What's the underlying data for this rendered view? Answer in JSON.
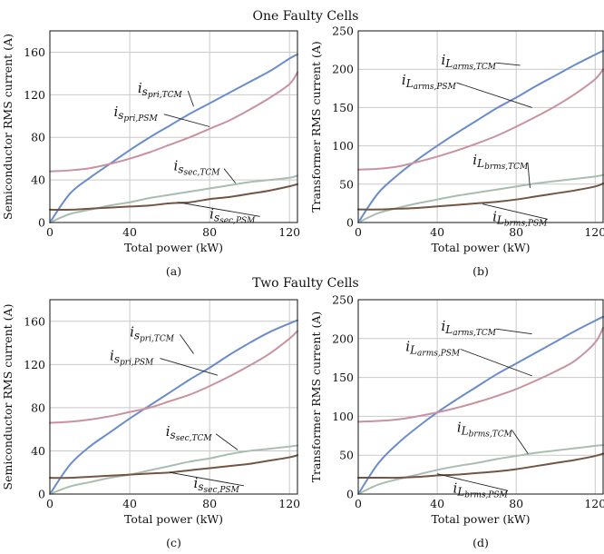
{
  "figure": {
    "title_top": "One Faulty Cells",
    "title_bottom": "Two Faulty Cells"
  },
  "colors": {
    "tcm_primary": "#6b8ccb",
    "psm_primary": "#c9929f",
    "tcm_secondary": "#a9bdb0",
    "psm_secondary": "#735544"
  },
  "chart_data": [
    {
      "id": "a",
      "type": "line",
      "panel_label": "(a)",
      "xlabel": "Total power (kW)",
      "ylabel": "Semiconductor RMS current (A)",
      "xlim": [
        0,
        124
      ],
      "ylim": [
        0,
        180
      ],
      "xticks": [
        0,
        40,
        80,
        120
      ],
      "yticks": [
        0,
        40,
        80,
        120,
        160
      ],
      "grid": true,
      "series": [
        {
          "name": "i_{s_{pri,TCM}}",
          "color": "#6b8ccb",
          "x": [
            0,
            10,
            20,
            30,
            40,
            50,
            60,
            70,
            80,
            90,
            100,
            110,
            120,
            124
          ],
          "y": [
            0,
            27,
            42,
            55,
            68,
            80,
            91,
            102,
            112,
            122,
            132,
            142,
            154,
            158
          ],
          "label": {
            "main": "i",
            "sub": "s",
            "subsub": "pri,TCM",
            "at": [
              44,
              122
            ],
            "anchor": [
              72,
              109
            ]
          }
        },
        {
          "name": "i_{s_{pri,PSM}}",
          "color": "#c9929f",
          "x": [
            0,
            10,
            20,
            30,
            40,
            50,
            60,
            70,
            80,
            90,
            100,
            110,
            120,
            124
          ],
          "y": [
            48,
            49,
            51,
            55,
            60,
            66,
            73,
            80,
            88,
            96,
            106,
            117,
            130,
            141
          ],
          "label": {
            "main": "i",
            "sub": "s",
            "subsub": "pri,PSM",
            "at": [
              32,
              100
            ],
            "anchor": [
              80,
              90
            ]
          }
        },
        {
          "name": "i_{s_{sec,TCM}}",
          "color": "#a9bdb0",
          "x": [
            0,
            10,
            20,
            30,
            40,
            50,
            60,
            70,
            80,
            90,
            100,
            110,
            120,
            124
          ],
          "y": [
            0,
            8,
            12,
            16,
            19,
            23,
            26,
            29,
            32,
            35,
            38,
            40,
            42,
            44
          ],
          "label": {
            "main": "i",
            "sub": "s",
            "subsub": "sec,TCM",
            "at": [
              62,
              49
            ],
            "anchor": [
              93,
              37
            ]
          }
        },
        {
          "name": "i_{s_{sec,PSM}}",
          "color": "#735544",
          "x": [
            0,
            10,
            20,
            30,
            40,
            50,
            60,
            70,
            80,
            90,
            100,
            110,
            120,
            124
          ],
          "y": [
            12,
            12,
            13,
            14,
            15,
            16,
            18,
            19,
            22,
            24,
            27,
            30,
            34,
            36
          ],
          "label": {
            "main": "i",
            "sub": "s",
            "subsub": "sec,PSM",
            "at": [
              80,
              4
            ],
            "anchor": [
              64,
              19
            ]
          }
        }
      ]
    },
    {
      "id": "b",
      "type": "line",
      "panel_label": "(b)",
      "xlabel": "Total power (kW)",
      "ylabel": "Transformer RMS current (A)",
      "xlim": [
        0,
        124
      ],
      "ylim": [
        0,
        250
      ],
      "xticks": [
        0,
        40,
        80,
        120
      ],
      "yticks": [
        0,
        50,
        100,
        150,
        200,
        250
      ],
      "grid": true,
      "series": [
        {
          "name": "i_{L_{arms,TCM}}",
          "color": "#6b8ccb",
          "x": [
            0,
            10,
            20,
            30,
            40,
            50,
            60,
            70,
            80,
            90,
            100,
            110,
            120,
            124
          ],
          "y": [
            0,
            38,
            62,
            82,
            100,
            117,
            133,
            149,
            163,
            178,
            192,
            206,
            219,
            224
          ],
          "label": {
            "main": "i",
            "sub": "L",
            "subsub": "arms,TCM",
            "at": [
              42,
              206
            ],
            "anchor": [
              82,
              205
            ]
          }
        },
        {
          "name": "i_{L_{arms,PSM}}",
          "color": "#c9929f",
          "x": [
            0,
            10,
            20,
            30,
            40,
            50,
            60,
            70,
            80,
            90,
            100,
            110,
            120,
            124
          ],
          "y": [
            69,
            70,
            73,
            79,
            86,
            94,
            103,
            113,
            125,
            138,
            152,
            168,
            187,
            200
          ],
          "label": {
            "main": "i",
            "sub": "L",
            "subsub": "arms,PSM",
            "at": [
              22,
              180
            ],
            "anchor": [
              88,
              150
            ]
          }
        },
        {
          "name": "i_{L_{brms,TCM}}",
          "color": "#a9bdb0",
          "x": [
            0,
            10,
            20,
            30,
            40,
            50,
            60,
            70,
            80,
            90,
            100,
            110,
            120,
            124
          ],
          "y": [
            0,
            12,
            19,
            25,
            30,
            35,
            39,
            43,
            47,
            51,
            54,
            57,
            60,
            62
          ],
          "label": {
            "main": "i",
            "sub": "L",
            "subsub": "brms,TCM",
            "at": [
              58,
              76
            ],
            "anchor": [
              87,
              45
            ]
          }
        },
        {
          "name": "i_{L_{brms,PSM}}",
          "color": "#735544",
          "x": [
            0,
            10,
            20,
            30,
            40,
            50,
            60,
            70,
            80,
            90,
            100,
            110,
            120,
            124
          ],
          "y": [
            17,
            17,
            18,
            19,
            21,
            23,
            25,
            27,
            30,
            34,
            38,
            42,
            47,
            51
          ],
          "label": {
            "main": "i",
            "sub": "L",
            "subsub": "brms,PSM",
            "at": [
              68,
              2
            ],
            "anchor": [
              63,
              24
            ]
          }
        }
      ]
    },
    {
      "id": "c",
      "type": "line",
      "panel_label": "(c)",
      "xlabel": "Total power (kW)",
      "ylabel": "Semiconductor RMS current (A)",
      "xlim": [
        0,
        124
      ],
      "ylim": [
        0,
        180
      ],
      "xticks": [
        0,
        40,
        80,
        120
      ],
      "yticks": [
        0,
        40,
        80,
        120,
        160
      ],
      "grid": true,
      "series": [
        {
          "name": "i_{s_{pri,TCM}}",
          "color": "#6b8ccb",
          "x": [
            0,
            10,
            20,
            30,
            40,
            50,
            60,
            70,
            80,
            90,
            100,
            110,
            120,
            124
          ],
          "y": [
            0,
            27,
            44,
            57,
            70,
            82,
            94,
            106,
            117,
            129,
            140,
            150,
            158,
            161
          ],
          "label": {
            "main": "i",
            "sub": "s",
            "subsub": "pri,TCM",
            "at": [
              40,
              146
            ],
            "anchor": [
              72,
              130
            ]
          }
        },
        {
          "name": "i_{s_{pri,PSM}}",
          "color": "#c9929f",
          "x": [
            0,
            10,
            20,
            30,
            40,
            50,
            60,
            70,
            80,
            90,
            100,
            110,
            120,
            124
          ],
          "y": [
            66,
            67,
            69,
            72,
            76,
            80,
            86,
            92,
            100,
            109,
            119,
            130,
            144,
            151
          ],
          "label": {
            "main": "i",
            "sub": "s",
            "subsub": "pri,PSM",
            "at": [
              30,
              124
            ],
            "anchor": [
              84,
              110
            ]
          }
        },
        {
          "name": "i_{s_{sec,TCM}}",
          "color": "#a9bdb0",
          "x": [
            0,
            10,
            20,
            30,
            40,
            50,
            60,
            70,
            80,
            90,
            100,
            110,
            120,
            124
          ],
          "y": [
            0,
            7,
            11,
            15,
            18,
            22,
            26,
            30,
            33,
            37,
            40,
            42,
            44,
            45
          ],
          "label": {
            "main": "i",
            "sub": "s",
            "subsub": "sec,TCM",
            "at": [
              58,
              54
            ],
            "anchor": [
              94,
              41
            ]
          }
        },
        {
          "name": "i_{s_{sec,PSM}}",
          "color": "#735544",
          "x": [
            0,
            10,
            20,
            30,
            40,
            50,
            60,
            70,
            80,
            90,
            100,
            110,
            120,
            124
          ],
          "y": [
            15,
            15,
            16,
            17,
            18,
            19,
            20,
            22,
            24,
            26,
            28,
            31,
            34,
            36
          ],
          "label": {
            "main": "i",
            "sub": "s",
            "subsub": "sec,PSM",
            "at": [
              72,
              6
            ],
            "anchor": [
              60,
              20
            ]
          }
        }
      ]
    },
    {
      "id": "d",
      "type": "line",
      "panel_label": "(d)",
      "xlabel": "Total power (kW)",
      "ylabel": "Transformer RMS current (A)",
      "xlim": [
        0,
        124
      ],
      "ylim": [
        0,
        250
      ],
      "xticks": [
        0,
        40,
        80,
        120
      ],
      "yticks": [
        0,
        50,
        100,
        150,
        200,
        250
      ],
      "grid": true,
      "series": [
        {
          "name": "i_{L_{arms,TCM}}",
          "color": "#6b8ccb",
          "x": [
            0,
            10,
            20,
            30,
            40,
            50,
            60,
            70,
            80,
            90,
            100,
            110,
            120,
            124
          ],
          "y": [
            0,
            39,
            65,
            86,
            105,
            122,
            138,
            154,
            168,
            182,
            196,
            210,
            223,
            228
          ],
          "label": {
            "main": "i",
            "sub": "L",
            "subsub": "arms,TCM",
            "at": [
              42,
              210
            ],
            "anchor": [
              88,
              206
            ]
          }
        },
        {
          "name": "i_{L_{arms,PSM}}",
          "color": "#c9929f",
          "x": [
            0,
            10,
            20,
            30,
            40,
            50,
            60,
            70,
            80,
            90,
            100,
            110,
            120,
            124
          ],
          "y": [
            93,
            94,
            96,
            100,
            105,
            111,
            118,
            126,
            135,
            146,
            158,
            172,
            195,
            214
          ],
          "label": {
            "main": "i",
            "sub": "L",
            "subsub": "arms,PSM",
            "at": [
              24,
              184
            ],
            "anchor": [
              88,
              152
            ]
          }
        },
        {
          "name": "i_{L_{brms,TCM}}",
          "color": "#a9bdb0",
          "x": [
            0,
            10,
            20,
            30,
            40,
            50,
            60,
            70,
            80,
            90,
            100,
            110,
            120,
            124
          ],
          "y": [
            0,
            12,
            19,
            25,
            31,
            36,
            40,
            45,
            49,
            53,
            56,
            59,
            62,
            63
          ],
          "label": {
            "main": "i",
            "sub": "L",
            "subsub": "brms,TCM",
            "at": [
              50,
              80
            ],
            "anchor": [
              86,
              52
            ]
          }
        },
        {
          "name": "i_{L_{brms,PSM}}",
          "color": "#735544",
          "x": [
            0,
            10,
            20,
            30,
            40,
            50,
            60,
            70,
            80,
            90,
            100,
            110,
            120,
            124
          ],
          "y": [
            21,
            21,
            21,
            22,
            24,
            25,
            27,
            29,
            32,
            36,
            40,
            44,
            49,
            52
          ],
          "label": {
            "main": "i",
            "sub": "L",
            "subsub": "brms,PSM",
            "at": [
              48,
              2
            ],
            "anchor": [
              40,
              26
            ]
          }
        }
      ]
    }
  ]
}
